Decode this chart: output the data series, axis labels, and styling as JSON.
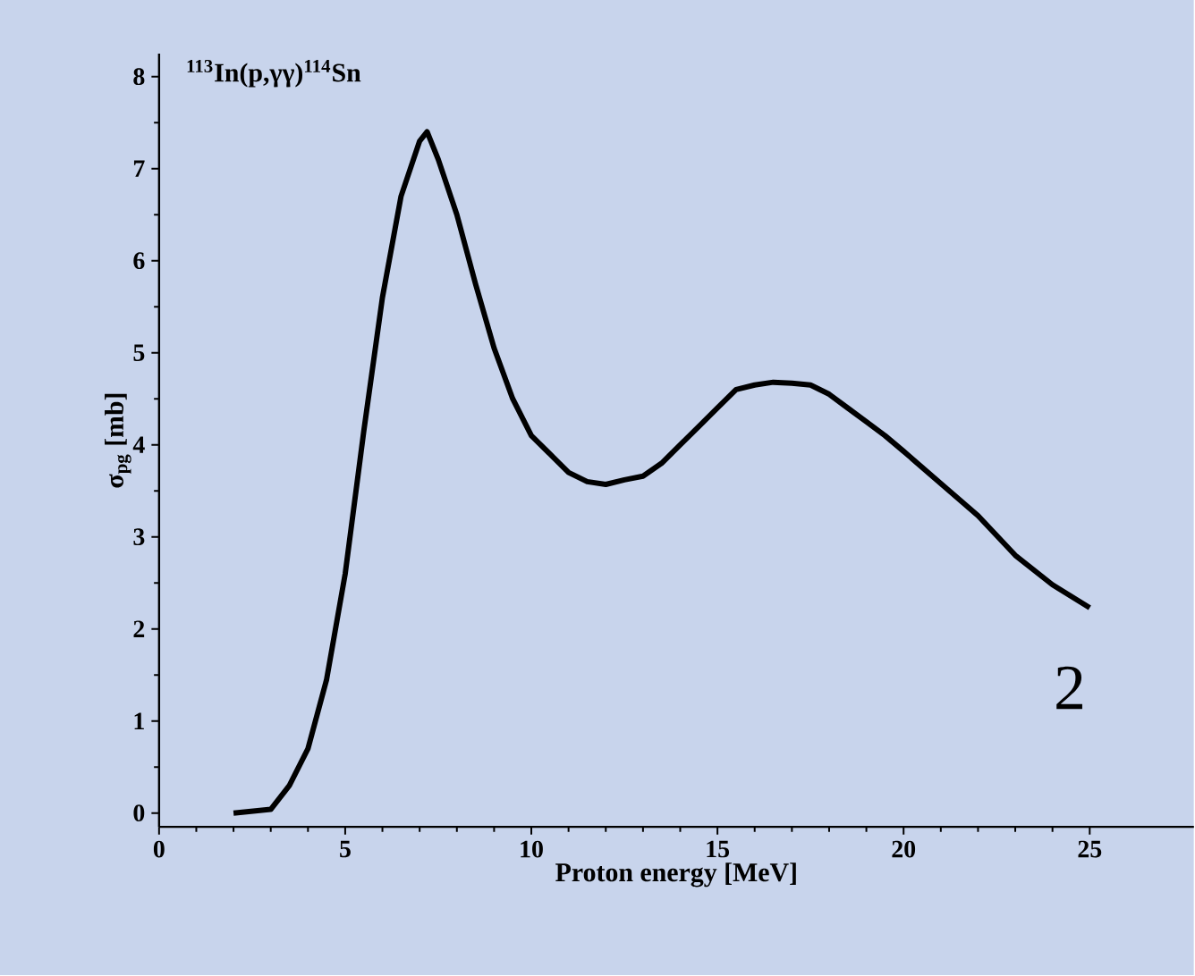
{
  "chart_data": {
    "type": "line",
    "title": "$^{113}$In(p,γγ)$^{114}$Sn",
    "xlabel": "Proton energy [MeV]",
    "ylabel": "σ$_{pg}$ [mb]",
    "annotations": [
      "2"
    ],
    "x": [
      2,
      3,
      3.5,
      4,
      4.5,
      5,
      5.5,
      6,
      6.5,
      7,
      7.2,
      7.5,
      8,
      8.5,
      9,
      9.5,
      10,
      10.5,
      11,
      11.5,
      12,
      12.5,
      13,
      13.5,
      14,
      14.5,
      15,
      15.5,
      16,
      16.5,
      17,
      17.5,
      18,
      18.5,
      19,
      19.5,
      20,
      21,
      22,
      23,
      24,
      25
    ],
    "series": [
      {
        "color": "#000000",
        "values": [
          0,
          0.04,
          0.3,
          0.7,
          1.45,
          2.6,
          4.15,
          5.6,
          6.7,
          7.3,
          7.4,
          7.1,
          6.5,
          5.75,
          5.05,
          4.5,
          4.1,
          3.9,
          3.7,
          3.6,
          3.57,
          3.62,
          3.66,
          3.8,
          4.0,
          4.2,
          4.4,
          4.6,
          4.65,
          4.68,
          4.67,
          4.65,
          4.55,
          4.4,
          4.25,
          4.1,
          3.93,
          3.58,
          3.23,
          2.8,
          2.48,
          2.23
        ]
      }
    ],
    "xlim": [
      0,
      27.8
    ],
    "ylim": [
      -0.15,
      8.25
    ],
    "xticks": [
      0,
      5,
      10,
      15,
      20,
      25
    ],
    "yticks": [
      0,
      1,
      2,
      3,
      4,
      5,
      6,
      7,
      8
    ],
    "grid": false,
    "marker": "none",
    "line_style": "solid"
  }
}
